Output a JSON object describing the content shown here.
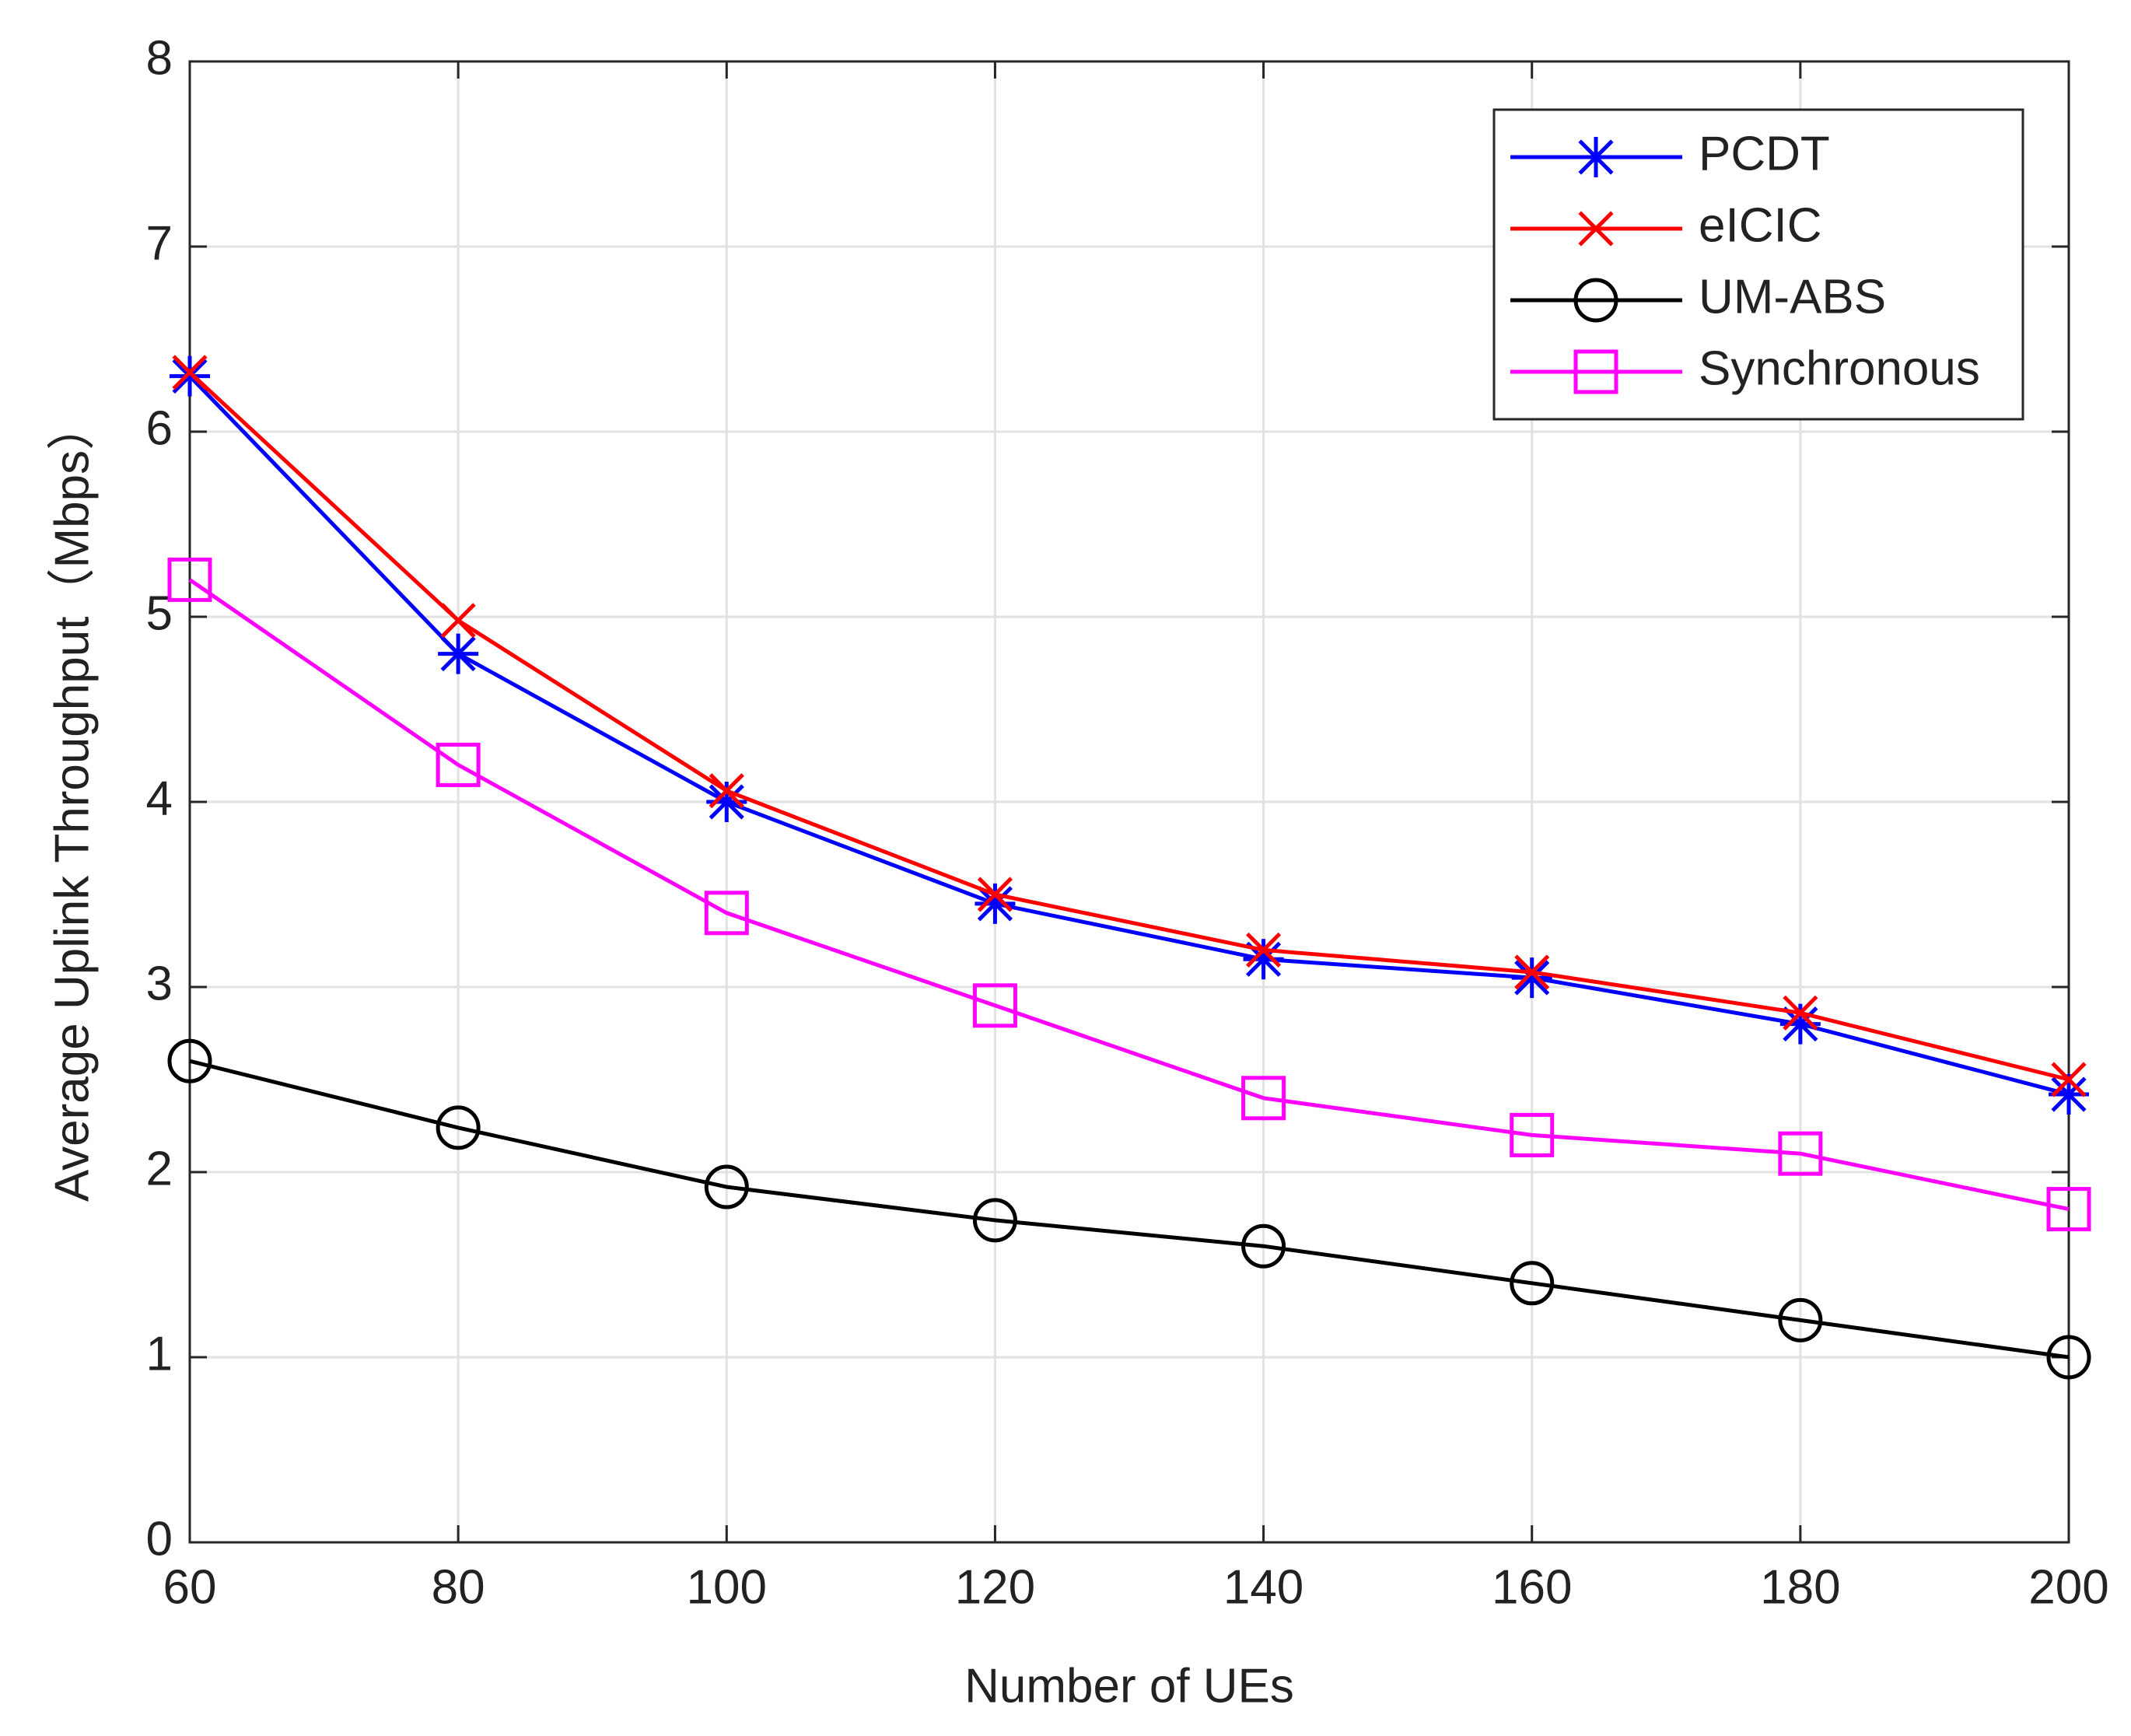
{
  "chart_data": {
    "type": "line",
    "x_label": "Number of UEs",
    "y_label": "Average Uplink Throughput（Mbps）",
    "x": [
      60,
      80,
      100,
      120,
      140,
      160,
      180,
      200
    ],
    "xlim": [
      60,
      200
    ],
    "xticks": [
      60,
      80,
      100,
      120,
      140,
      160,
      180,
      200
    ],
    "ylim": [
      0,
      8
    ],
    "yticks": [
      0,
      1,
      2,
      3,
      4,
      5,
      6,
      7,
      8
    ],
    "grid": true,
    "legend": "upper right",
    "series": [
      {
        "name": "PCDT",
        "color": "#0000ff",
        "marker": "star",
        "values": [
          6.3,
          4.8,
          4.0,
          3.45,
          3.15,
          3.05,
          2.8,
          2.42
        ]
      },
      {
        "name": "eICIC",
        "color": "#ff0000",
        "marker": "x",
        "values": [
          6.32,
          4.98,
          4.06,
          3.5,
          3.2,
          3.08,
          2.86,
          2.5
        ]
      },
      {
        "name": "UM-ABS",
        "color": "#000000",
        "marker": "circle",
        "values": [
          2.6,
          2.24,
          1.92,
          1.74,
          1.6,
          1.4,
          1.2,
          1.0
        ]
      },
      {
        "name": "Synchronous",
        "color": "#ff00ff",
        "marker": "square",
        "values": [
          5.2,
          4.2,
          3.4,
          2.9,
          2.4,
          2.2,
          2.1,
          1.8
        ]
      }
    ]
  }
}
